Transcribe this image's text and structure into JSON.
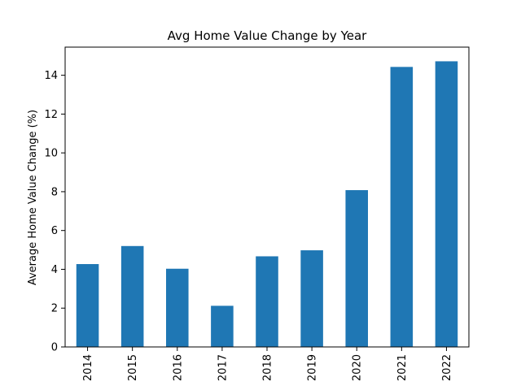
{
  "chart_data": {
    "type": "bar",
    "title": "Avg Home Value Change by Year",
    "xlabel": "",
    "ylabel": "Average Home Value Change (%)",
    "categories": [
      "2014",
      "2015",
      "2016",
      "2017",
      "2018",
      "2019",
      "2020",
      "2021",
      "2022"
    ],
    "values": [
      4.27,
      5.2,
      4.03,
      2.12,
      4.67,
      4.98,
      8.08,
      14.43,
      14.72
    ],
    "ylim": [
      0,
      15.45
    ],
    "yticks": [
      0,
      2,
      4,
      6,
      8,
      10,
      12,
      14
    ],
    "grid": false,
    "bar_color": "#1f77b4"
  }
}
